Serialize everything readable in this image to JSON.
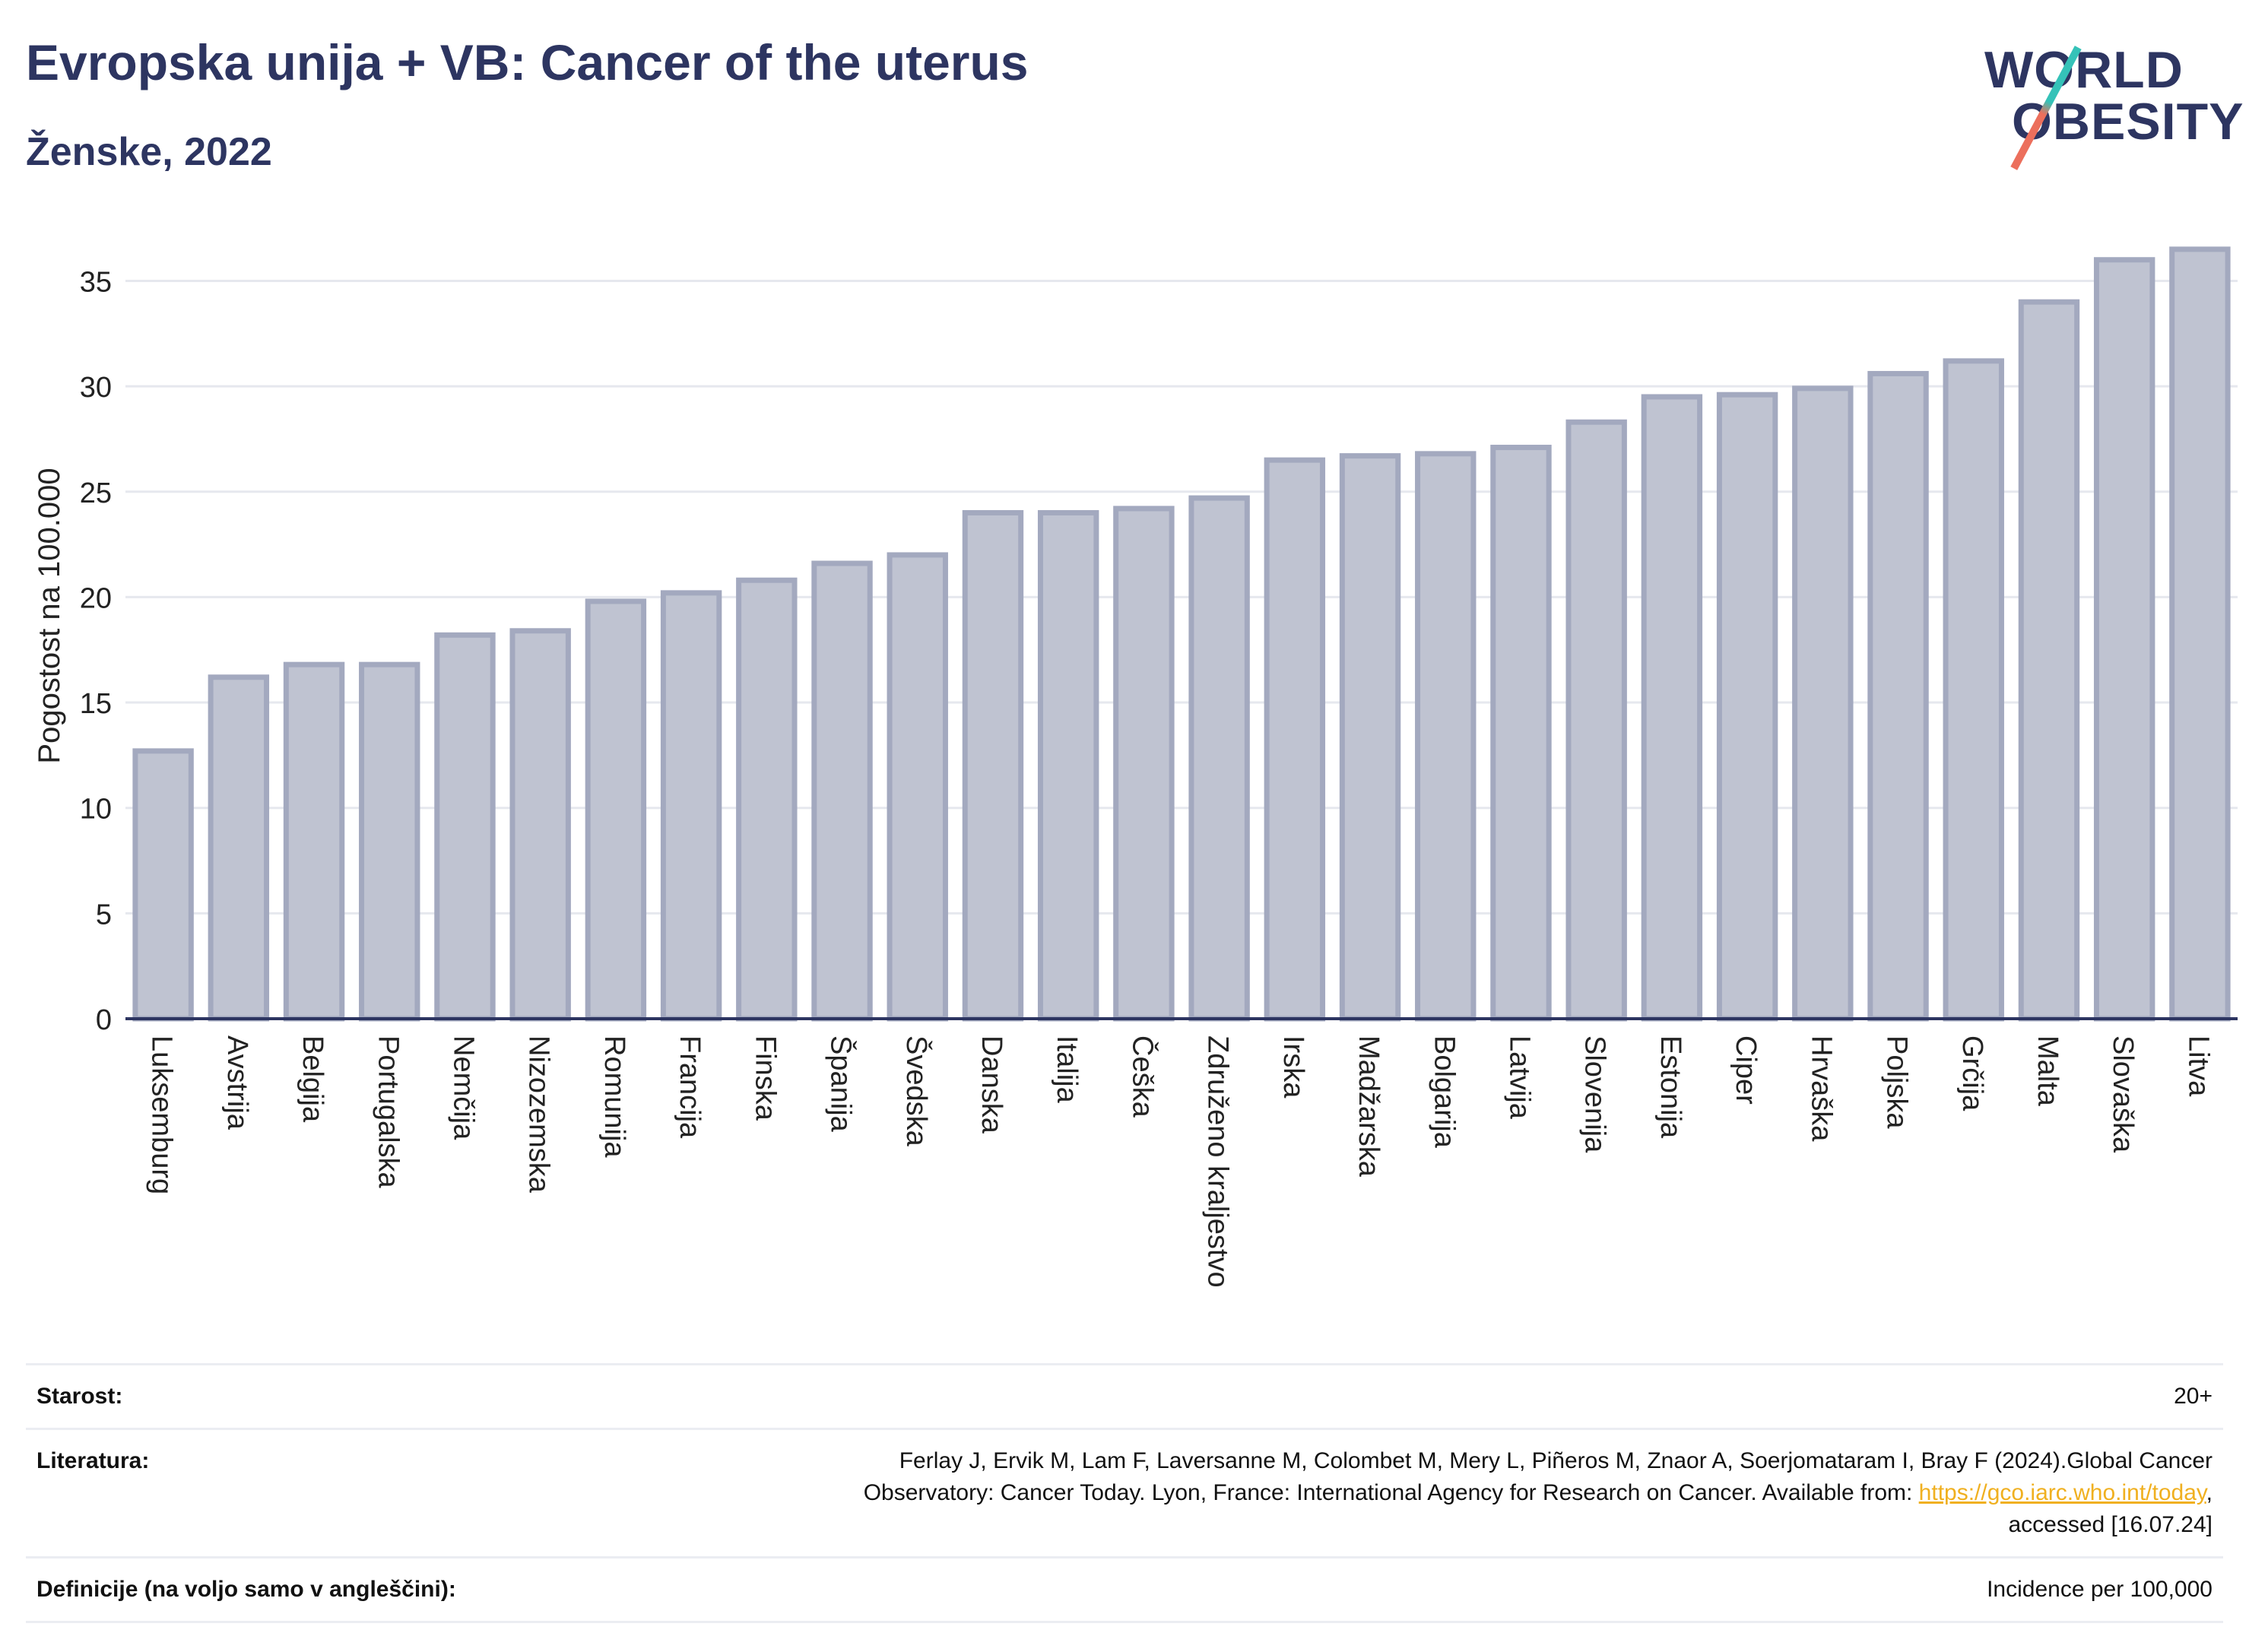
{
  "title": "Evropska unija + VB: Cancer of the uterus",
  "subtitle": "Ženske, 2022",
  "logo": {
    "line1": "WORLD",
    "line2": "OBESITY"
  },
  "chart_data": {
    "type": "bar",
    "title": "Evropska unija + VB: Cancer of the uterus",
    "subtitle": "Ženske, 2022",
    "xlabel": "",
    "ylabel": "Pogostost na 100.000",
    "ylim": [
      0,
      37
    ],
    "yticks": [
      0,
      5,
      10,
      15,
      20,
      25,
      30,
      35
    ],
    "grid": true,
    "bar_color": "#bfc3d1",
    "bar_edge_color": "#a3a9bf",
    "categories": [
      "Luksemburg",
      "Avstrija",
      "Belgija",
      "Portugalska",
      "Nemčija",
      "Nizozemska",
      "Romunija",
      "Francija",
      "Finska",
      "Španija",
      "Švedska",
      "Danska",
      "Italija",
      "Češka",
      "Združeno kraljestvo",
      "Irska",
      "Madžarska",
      "Bolgarija",
      "Latvija",
      "Slovenija",
      "Estonija",
      "Ciper",
      "Hrvaška",
      "Poljska",
      "Grčija",
      "Malta",
      "Slovaška",
      "Litva"
    ],
    "values": [
      12.7,
      16.2,
      16.8,
      16.8,
      18.2,
      18.4,
      19.8,
      20.2,
      20.8,
      21.6,
      22.0,
      24.0,
      24.0,
      24.2,
      24.7,
      26.5,
      26.7,
      26.8,
      27.1,
      28.3,
      29.5,
      29.6,
      29.9,
      30.6,
      31.2,
      34.0,
      36.0,
      36.5
    ]
  },
  "info": {
    "age": {
      "label": "Starost:",
      "value": "20+"
    },
    "references": {
      "label": "Literatura:",
      "line1": "Ferlay J, Ervik M, Lam F, Laversanne M, Colombet M, Mery L, Piñeros M, Znaor A, Soerjomataram I, Bray F (2024).Global Cancer",
      "line2_pre": "Observatory: Cancer Today. Lyon, France: International Agency for Research on Cancer. Available from: ",
      "link": "https://gco.iarc.who.int/today",
      "line2_post": ",",
      "line3": "accessed [16.07.24]"
    },
    "definitions": {
      "label": "Definicije (na voljo samo v angleščini):",
      "value": "Incidence per 100,000"
    }
  }
}
